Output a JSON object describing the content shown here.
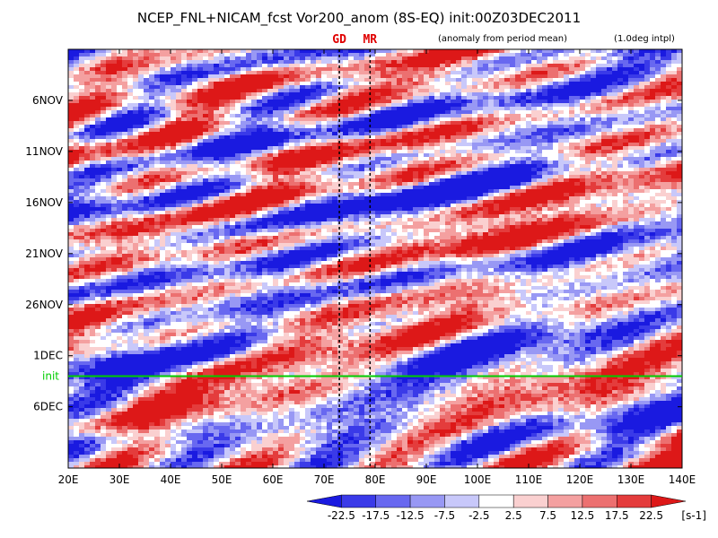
{
  "chart_data": {
    "type": "heatmap",
    "title": "NCEP_FNL+NICAM_fcst Vor200_anom (8S-EQ) init:00Z03DEC2011",
    "note_left": "(anomaly from period mean)",
    "note_right": "(1.0deg intpl)",
    "x_ticks": [
      "20E",
      "30E",
      "40E",
      "50E",
      "60E",
      "70E",
      "80E",
      "90E",
      "100E",
      "110E",
      "120E",
      "130E",
      "140E"
    ],
    "x_values": [
      20,
      30,
      40,
      50,
      60,
      70,
      80,
      90,
      100,
      110,
      120,
      130,
      140
    ],
    "xlim": [
      20,
      140
    ],
    "y_ticks": [
      "6NOV",
      "11NOV",
      "16NOV",
      "21NOV",
      "26NOV",
      "1DEC",
      "6DEC"
    ],
    "y_day_index": [
      5,
      10,
      15,
      20,
      25,
      30,
      35
    ],
    "ylim_days": [
      0,
      41
    ],
    "y_direction": "time increases downward",
    "init_label": "init",
    "init_day_index": 32,
    "markers": [
      {
        "label": "GD",
        "lon": 73,
        "color": "#e00000"
      },
      {
        "label": "MR",
        "lon": 79,
        "color": "#e00000"
      }
    ],
    "colorbar": {
      "labels": [
        "-22.5",
        "-17.5",
        "-12.5",
        "-7.5",
        "-2.5",
        "2.5",
        "7.5",
        "12.5",
        "17.5",
        "22.5"
      ],
      "unit": "[s-1]",
      "colors": [
        "#1a1ae0",
        "#3a3ae8",
        "#6868f0",
        "#9898f4",
        "#c8c8fa",
        "#ffffff",
        "#fad0d0",
        "#f4a0a0",
        "#ec7070",
        "#e43c3c",
        "#dd1818"
      ]
    },
    "colors": {
      "init_line": "#00cc00",
      "marker_text": "#e00000",
      "marker_line": "#000000"
    }
  }
}
